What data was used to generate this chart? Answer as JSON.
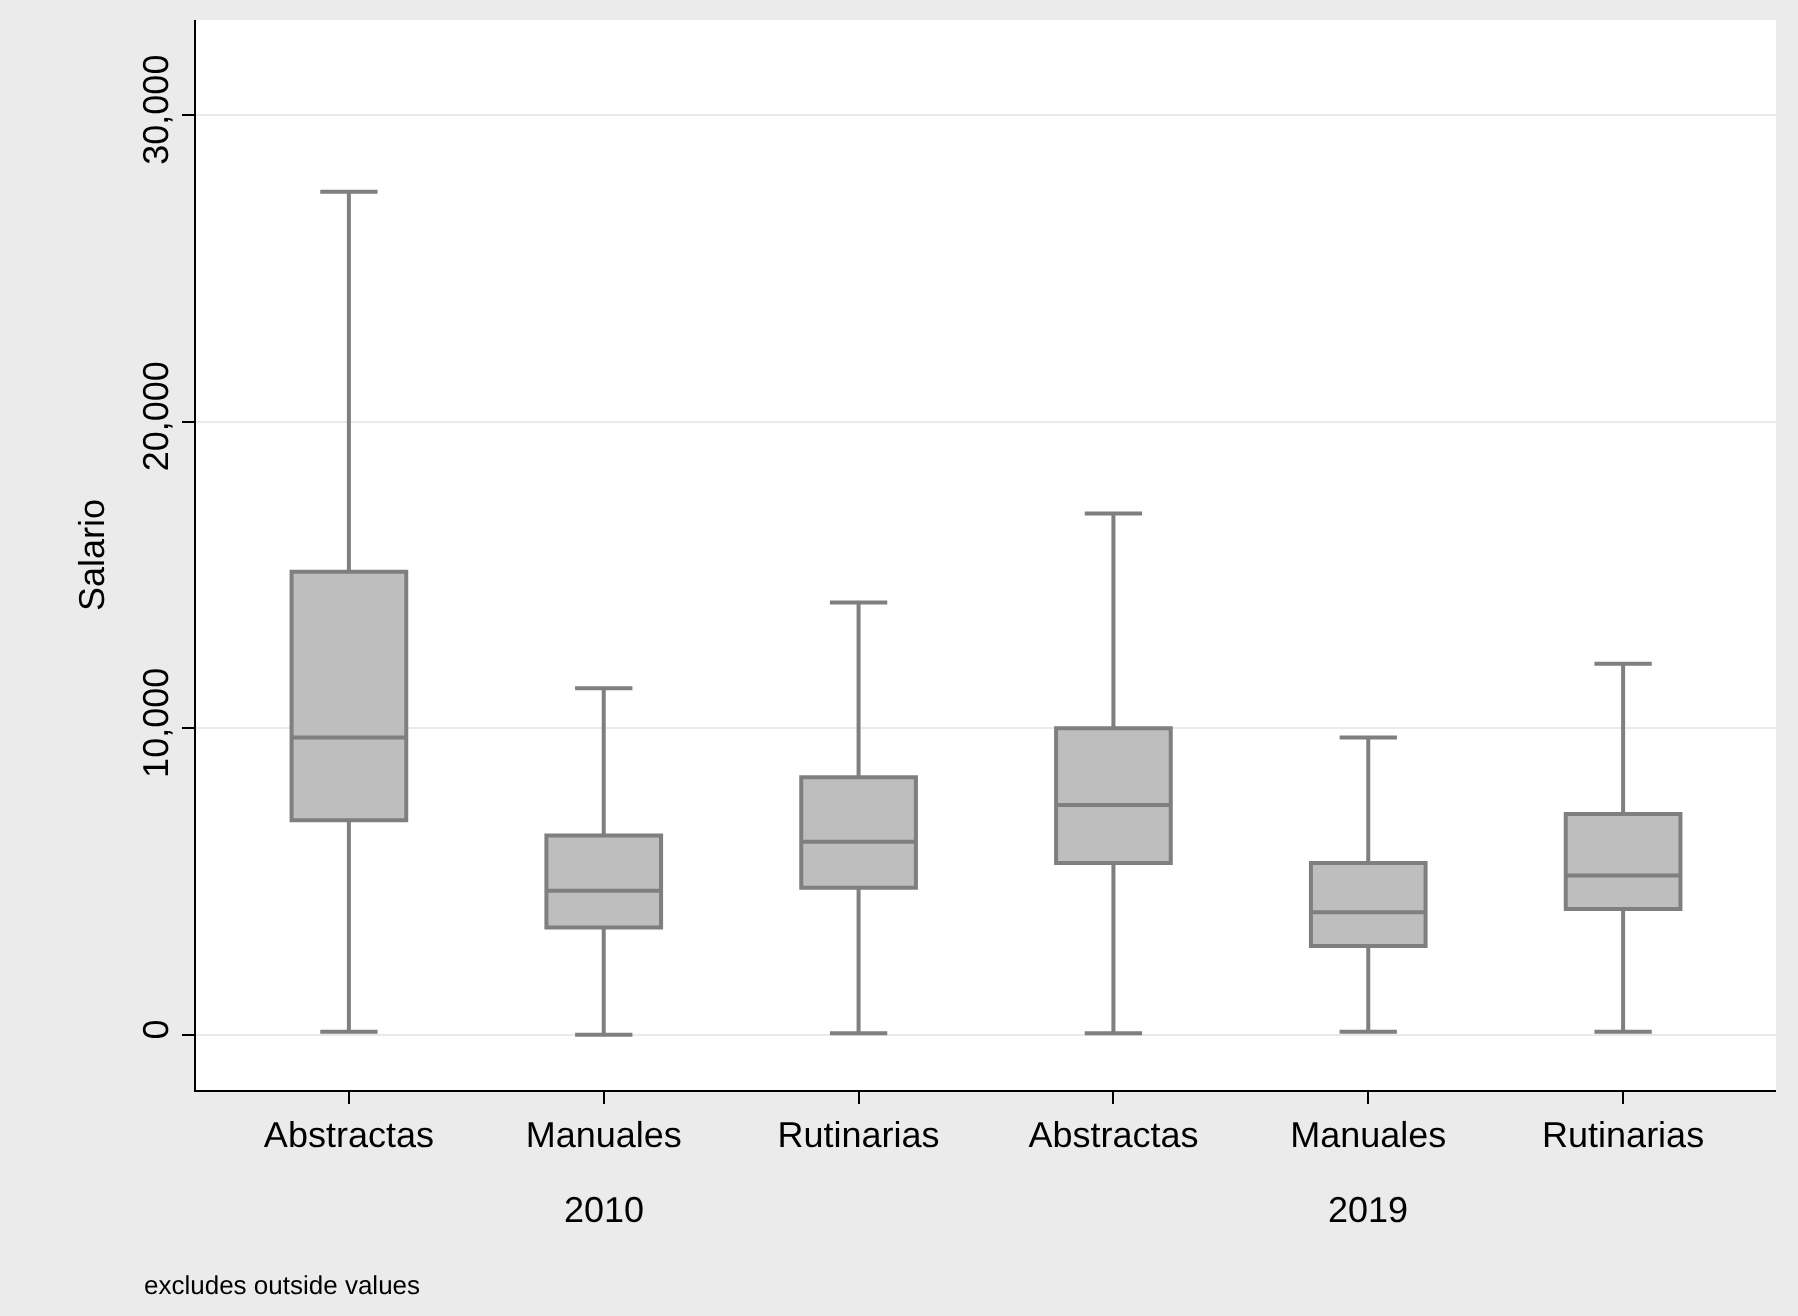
{
  "chart_data": {
    "type": "box",
    "ylabel": "Salario",
    "categories": [
      "Abstractas",
      "Manuales",
      "Rutinarias",
      "Abstractas",
      "Manuales",
      "Rutinarias"
    ],
    "boxes": [
      {
        "low": 100,
        "q1": 7000,
        "median": 9700,
        "q3": 15100,
        "high": 27500
      },
      {
        "low": 0,
        "q1": 3500,
        "median": 4700,
        "q3": 6500,
        "high": 11300
      },
      {
        "low": 50,
        "q1": 4800,
        "median": 6300,
        "q3": 8400,
        "high": 14100
      },
      {
        "low": 50,
        "q1": 5600,
        "median": 7500,
        "q3": 10000,
        "high": 17000
      },
      {
        "low": 100,
        "q1": 2900,
        "median": 4000,
        "q3": 5600,
        "high": 9700
      },
      {
        "low": 100,
        "q1": 4100,
        "median": 5200,
        "q3": 7200,
        "high": 12100
      }
    ],
    "color": "#bebebe",
    "ylim": [
      -1800,
      33100
    ],
    "yticks": [
      0,
      {
        "value": 10000,
        "label": "10,000"
      },
      {
        "value": 20000,
        "label": "20,000"
      },
      {
        "value": 30000,
        "label": "30,000"
      }
    ],
    "grid": "y",
    "annotations": [
      "2010",
      "2019",
      "excludes outside values"
    ]
  }
}
